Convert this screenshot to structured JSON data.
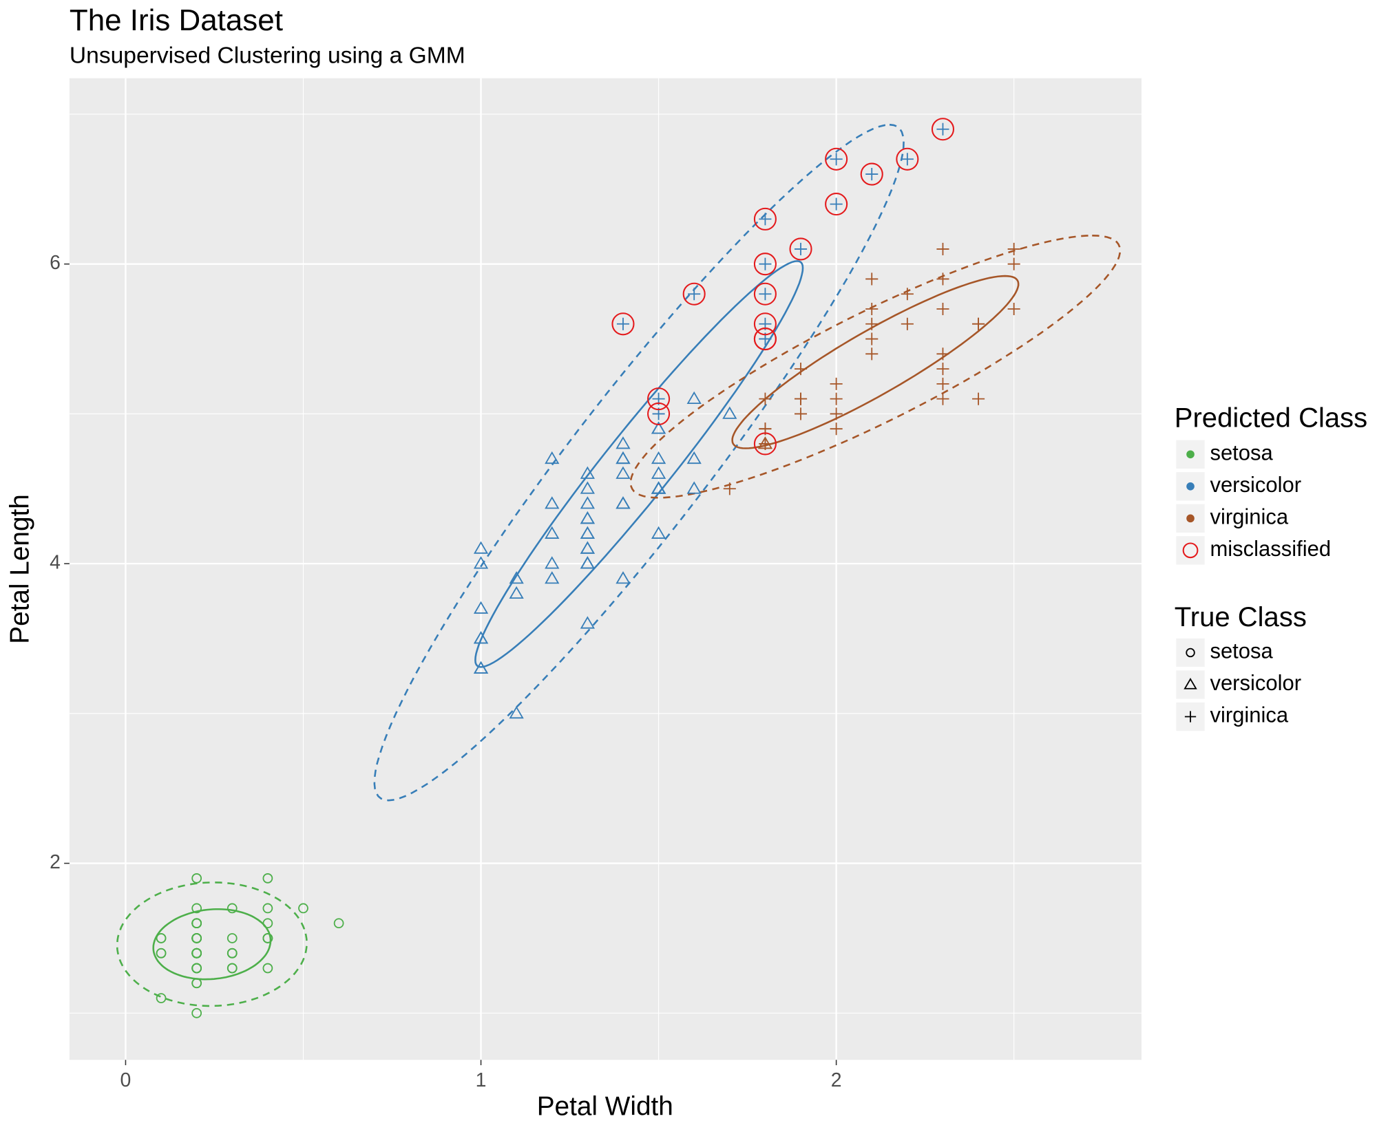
{
  "chart_data": {
    "type": "scatter",
    "title": "The Iris Dataset",
    "subtitle": "Unsupervised Clustering using a GMM",
    "x_label": "Petal Width",
    "y_label": "Petal Length",
    "xlim": [
      -0.158,
      2.859
    ],
    "ylim": [
      0.688,
      7.24
    ],
    "xticks": [
      0,
      1,
      2
    ],
    "yticks": [
      2,
      4,
      6
    ],
    "x_minor_grid": [
      0.5,
      1.5,
      2.5
    ],
    "y_minor_grid": [
      1,
      3,
      5,
      7
    ],
    "grid": true,
    "predicted_legend_title": "Predicted Class",
    "true_legend_title": "True Class",
    "classes": [
      {
        "name": "setosa",
        "color": "#4daf4a"
      },
      {
        "name": "versicolor",
        "color": "#377eb8"
      },
      {
        "name": "virginica",
        "color": "#a65628"
      }
    ],
    "misclassified": {
      "name": "misclassified",
      "color": "#e41a1c"
    },
    "series": [
      {
        "name": "setosa",
        "shape": "circle",
        "x": [
          0.2,
          0.2,
          0.2,
          0.2,
          0.2,
          0.4,
          0.3,
          0.2,
          0.2,
          0.1,
          0.2,
          0.2,
          0.1,
          0.1,
          0.2,
          0.4,
          0.4,
          0.3,
          0.3,
          0.3,
          0.2,
          0.4,
          0.2,
          0.5,
          0.2,
          0.2,
          0.4,
          0.2,
          0.2,
          0.2,
          0.2,
          0.4,
          0.1,
          0.2,
          0.2,
          0.2,
          0.2,
          0.1,
          0.2,
          0.2,
          0.3,
          0.3,
          0.2,
          0.6,
          0.4,
          0.3,
          0.2,
          0.2,
          0.2,
          0.2
        ],
        "y": [
          1.4,
          1.4,
          1.3,
          1.5,
          1.4,
          1.7,
          1.4,
          1.5,
          1.4,
          1.5,
          1.5,
          1.6,
          1.4,
          1.1,
          1.2,
          1.5,
          1.3,
          1.4,
          1.7,
          1.5,
          1.7,
          1.5,
          1,
          1.7,
          1.9,
          1.6,
          1.6,
          1.5,
          1.4,
          1.6,
          1.6,
          1.5,
          1.5,
          1.4,
          1.5,
          1.2,
          1.3,
          1.4,
          1.3,
          1.5,
          1.3,
          1.3,
          1.3,
          1.6,
          1.9,
          1.4,
          1.6,
          1.4,
          1.5,
          1.4
        ],
        "predicted": [
          "setosa",
          "setosa",
          "setosa",
          "setosa",
          "setosa",
          "setosa",
          "setosa",
          "setosa",
          "setosa",
          "setosa",
          "setosa",
          "setosa",
          "setosa",
          "setosa",
          "setosa",
          "setosa",
          "setosa",
          "setosa",
          "setosa",
          "setosa",
          "setosa",
          "setosa",
          "setosa",
          "setosa",
          "setosa",
          "setosa",
          "setosa",
          "setosa",
          "setosa",
          "setosa",
          "setosa",
          "setosa",
          "setosa",
          "setosa",
          "setosa",
          "setosa",
          "setosa",
          "setosa",
          "setosa",
          "setosa",
          "setosa",
          "setosa",
          "setosa",
          "setosa",
          "setosa",
          "setosa",
          "setosa",
          "setosa",
          "setosa",
          "setosa"
        ]
      },
      {
        "name": "versicolor",
        "shape": "triangle",
        "x": [
          1.4,
          1.5,
          1.5,
          1.3,
          1.5,
          1.3,
          1.6,
          1,
          1.3,
          1.4,
          1,
          1.5,
          1,
          1.4,
          1.3,
          1.4,
          1.5,
          1,
          1.5,
          1.1,
          1.8,
          1.3,
          1.5,
          1.2,
          1.3,
          1.4,
          1.4,
          1.7,
          1.5,
          1,
          1.1,
          1,
          1.2,
          1.6,
          1.5,
          1.6,
          1.5,
          1.3,
          1.3,
          1.3,
          1.2,
          1.4,
          1.2,
          1,
          1.3,
          1.2,
          1.3,
          1.3,
          1.1,
          1.3
        ],
        "y": [
          4.7,
          4.5,
          4.9,
          4,
          4.6,
          4.5,
          4.7,
          3.3,
          4.6,
          3.9,
          3.5,
          4.2,
          4,
          4.7,
          3.6,
          4.4,
          4.5,
          4.1,
          4.5,
          3.9,
          4.8,
          4,
          4.9,
          4.7,
          4.3,
          4.4,
          4.8,
          5,
          4.5,
          3.5,
          3.8,
          3.7,
          3.9,
          5.1,
          4.5,
          4.5,
          4.7,
          4.4,
          4.1,
          4,
          4.4,
          4.6,
          4,
          3.3,
          4.2,
          4.2,
          4.2,
          4.3,
          3,
          4.1
        ],
        "predicted": [
          "versicolor",
          "versicolor",
          "versicolor",
          "versicolor",
          "versicolor",
          "versicolor",
          "versicolor",
          "versicolor",
          "versicolor",
          "versicolor",
          "versicolor",
          "versicolor",
          "versicolor",
          "versicolor",
          "versicolor",
          "versicolor",
          "versicolor",
          "versicolor",
          "versicolor",
          "versicolor",
          "virginica",
          "versicolor",
          "versicolor",
          "versicolor",
          "versicolor",
          "versicolor",
          "versicolor",
          "versicolor",
          "versicolor",
          "versicolor",
          "versicolor",
          "versicolor",
          "versicolor",
          "versicolor",
          "versicolor",
          "versicolor",
          "versicolor",
          "versicolor",
          "versicolor",
          "versicolor",
          "versicolor",
          "versicolor",
          "versicolor",
          "versicolor",
          "versicolor",
          "versicolor",
          "versicolor",
          "versicolor",
          "versicolor",
          "versicolor"
        ]
      },
      {
        "name": "virginica",
        "shape": "plus",
        "x": [
          2.5,
          1.9,
          2.1,
          1.8,
          2.2,
          2.1,
          1.7,
          1.8,
          1.8,
          2.5,
          2,
          1.9,
          2.1,
          2,
          2.4,
          2.3,
          1.8,
          2.2,
          2.3,
          1.5,
          2.3,
          2,
          2,
          1.8,
          2.1,
          1.8,
          1.8,
          1.8,
          2.1,
          1.6,
          1.9,
          2,
          2.2,
          1.5,
          1.4,
          2.3,
          2.4,
          1.8,
          1.8,
          2.1,
          2.4,
          2.3,
          1.9,
          2.3,
          2.5,
          2.3,
          1.9,
          2,
          2.3,
          1.8
        ],
        "y": [
          6,
          5.1,
          5.9,
          5.6,
          5.8,
          6.6,
          4.5,
          6.3,
          5.8,
          6.1,
          5.1,
          5.3,
          5.5,
          5,
          5.1,
          5.3,
          5.5,
          6.7,
          6.9,
          5,
          5.7,
          4.9,
          6.7,
          4.9,
          5.7,
          6,
          4.8,
          4.9,
          5.6,
          5.8,
          6.1,
          6.4,
          5.6,
          5.1,
          5.6,
          6.1,
          5.6,
          5.5,
          4.8,
          5.4,
          5.6,
          5.1,
          5.1,
          5.9,
          5.7,
          5.2,
          5,
          5.2,
          5.4,
          5.1
        ],
        "predicted": [
          "virginica",
          "virginica",
          "virginica",
          "versicolor",
          "virginica",
          "versicolor",
          "virginica",
          "versicolor",
          "versicolor",
          "virginica",
          "virginica",
          "virginica",
          "virginica",
          "virginica",
          "virginica",
          "virginica",
          "versicolor",
          "versicolor",
          "versicolor",
          "versicolor",
          "virginica",
          "virginica",
          "versicolor",
          "virginica",
          "virginica",
          "versicolor",
          "virginica",
          "virginica",
          "virginica",
          "versicolor",
          "versicolor",
          "versicolor",
          "virginica",
          "versicolor",
          "versicolor",
          "virginica",
          "virginica",
          "versicolor",
          "virginica",
          "virginica",
          "virginica",
          "virginica",
          "virginica",
          "virginica",
          "virginica",
          "virginica",
          "virginica",
          "virginica",
          "virginica",
          "virginica"
        ]
      }
    ],
    "ellipses": [
      {
        "class": "setosa",
        "linetype": "solid",
        "center": [
          0.243,
          1.46
        ],
        "u": [
          0.16,
          0.08
        ],
        "v": [
          -0.04,
          0.22
        ]
      },
      {
        "class": "setosa",
        "linetype": "dashed",
        "center": [
          0.243,
          1.46
        ],
        "u": [
          0.26,
          0.1
        ],
        "v": [
          -0.06,
          0.4
        ]
      },
      {
        "class": "versicolor",
        "linetype": "solid",
        "center": [
          1.445,
          4.665
        ],
        "u": [
          0.445,
          1.355
        ],
        "v": [
          0.12,
          0
        ]
      },
      {
        "class": "versicolor",
        "linetype": "dashed",
        "center": [
          1.445,
          4.675
        ],
        "u": [
          0.705,
          2.255
        ],
        "v": [
          0.24,
          0
        ]
      },
      {
        "class": "virginica",
        "linetype": "solid",
        "center": [
          2.11,
          5.345
        ],
        "u": [
          0.365,
          0.575
        ],
        "v": [
          0.17,
          0
        ]
      },
      {
        "class": "virginica",
        "linetype": "dashed",
        "center": [
          2.11,
          5.315
        ],
        "u": [
          0.61,
          0.875
        ],
        "v": [
          0.32,
          0
        ]
      }
    ]
  }
}
